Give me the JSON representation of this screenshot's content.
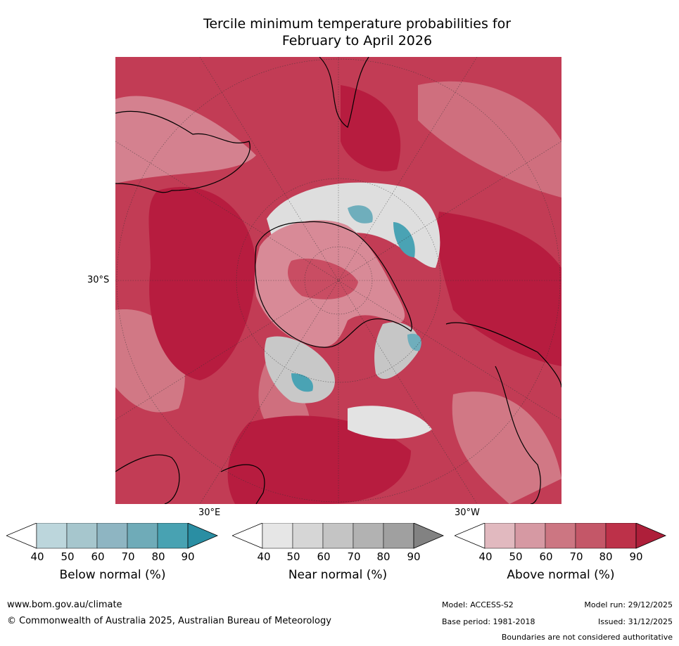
{
  "title_line1": "Tercile minimum temperature probabilities for",
  "title_line2": "February to April 2026",
  "map": {
    "projection": "south-polar",
    "lat_label": "30°S",
    "lon_labels": {
      "east": "30°E",
      "west": "30°W"
    },
    "colors": {
      "above_dominant": "#b71c3f",
      "above_mid": "#c9455e",
      "above_light": "#d8808f",
      "near": "#cfcfcf",
      "below": "#4aa3b4",
      "coast": "#000000"
    }
  },
  "colorbars": [
    {
      "label": "Below normal (%)",
      "ticks": [
        "40",
        "50",
        "60",
        "70",
        "80",
        "90"
      ],
      "colors": [
        "#ffffff",
        "#bcd6dc",
        "#a6c6cd",
        "#8eb5c2",
        "#6fabb8",
        "#48a2b2",
        "#2a8ea3"
      ]
    },
    {
      "label": "Near normal (%)",
      "ticks": [
        "40",
        "50",
        "60",
        "70",
        "80",
        "90"
      ],
      "colors": [
        "#ffffff",
        "#e6e6e6",
        "#d6d6d6",
        "#c4c4c4",
        "#b2b2b2",
        "#a0a0a0",
        "#828282"
      ]
    },
    {
      "label": "Above normal (%)",
      "ticks": [
        "40",
        "50",
        "60",
        "70",
        "80",
        "90"
      ],
      "colors": [
        "#ffffff",
        "#e1b9bf",
        "#d699a3",
        "#cc7682",
        "#c45768",
        "#bd3149",
        "#ae1f3a"
      ]
    }
  ],
  "footer": {
    "url": "www.bom.gov.au/climate",
    "copyright": "© Commonwealth of Australia 2025, Australian Bureau of Meteorology",
    "model": "Model: ACCESS-S2",
    "model_run": "Model run: 29/12/2025",
    "base_period": "Base period: 1981-2018",
    "issued": "Issued: 31/12/2025",
    "disclaimer": "Boundaries are not considered authoritative"
  }
}
